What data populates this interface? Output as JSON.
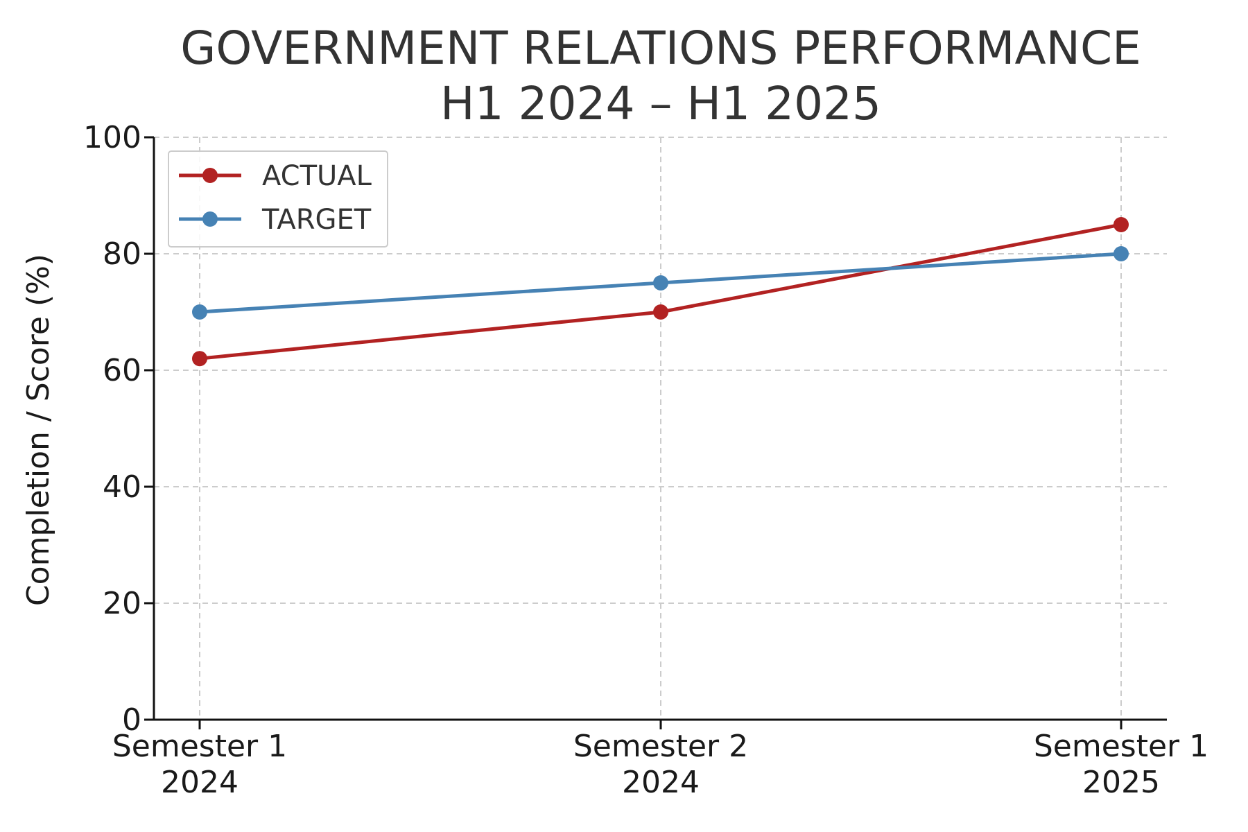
{
  "chart_data": {
    "type": "line",
    "title_lines": [
      "GOVERNMENT RELATIONS PERFORMANCE",
      "H1 2024 – H1 2025"
    ],
    "categories": [
      [
        "Semester 1",
        "2024"
      ],
      [
        "Semester 2",
        "2024"
      ],
      [
        "Semester 1",
        "2025"
      ]
    ],
    "series": [
      {
        "name": "ACTUAL",
        "values": [
          62,
          70,
          85
        ],
        "color": "#b22222"
      },
      {
        "name": "TARGET",
        "values": [
          70,
          75,
          80
        ],
        "color": "#4682b4"
      }
    ],
    "xlabel": "",
    "ylabel": "Completion / Score (%)",
    "ylim": [
      0,
      100
    ],
    "yticks": [
      0,
      20,
      40,
      60,
      80,
      100
    ],
    "grid": true,
    "legend_position": "top-left"
  }
}
